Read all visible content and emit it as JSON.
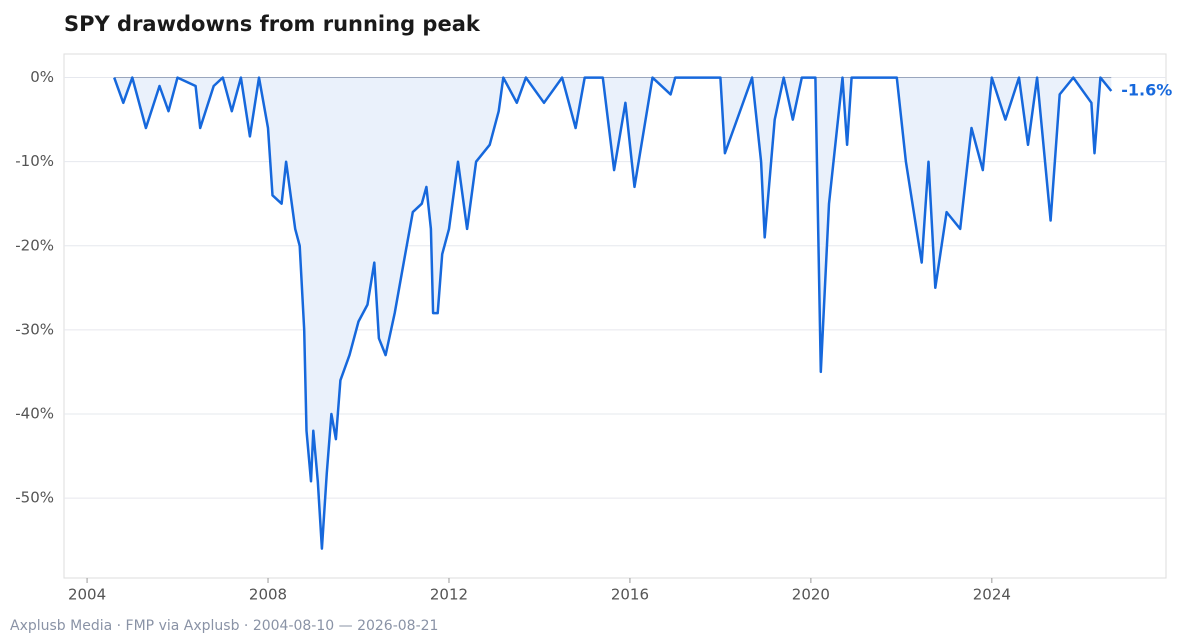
{
  "chart_data": {
    "type": "area-line",
    "title": "SPY drawdowns from running peak",
    "footer": "Axplusb Media · FMP via Axplusb · 2004-08-10 — 2026-08-21",
    "x": [
      2004.6,
      2004.8,
      2005.0,
      2005.3,
      2005.6,
      2005.8,
      2006.0,
      2006.4,
      2006.5,
      2006.8,
      2007.0,
      2007.2,
      2007.4,
      2007.6,
      2007.8,
      2008.0,
      2008.1,
      2008.3,
      2008.4,
      2008.6,
      2008.7,
      2008.8,
      2008.85,
      2008.95,
      2009.0,
      2009.1,
      2009.19,
      2009.3,
      2009.4,
      2009.5,
      2009.6,
      2009.8,
      2010.0,
      2010.2,
      2010.35,
      2010.45,
      2010.6,
      2010.8,
      2011.0,
      2011.2,
      2011.4,
      2011.5,
      2011.6,
      2011.65,
      2011.75,
      2011.85,
      2012.0,
      2012.2,
      2012.4,
      2012.6,
      2012.9,
      2013.1,
      2013.2,
      2013.5,
      2013.7,
      2014.1,
      2014.5,
      2014.8,
      2015.0,
      2015.4,
      2015.65,
      2015.9,
      2016.1,
      2016.5,
      2016.9,
      2017.0,
      2018.0,
      2018.1,
      2018.3,
      2018.7,
      2018.9,
      2018.98,
      2019.2,
      2019.4,
      2019.6,
      2019.8,
      2020.1,
      2020.22,
      2020.4,
      2020.6,
      2020.7,
      2020.8,
      2020.9,
      2021.9,
      2022.1,
      2022.45,
      2022.6,
      2022.75,
      2023.0,
      2023.3,
      2023.55,
      2023.8,
      2024.0,
      2024.3,
      2024.6,
      2024.8,
      2025.0,
      2025.3,
      2025.5,
      2025.8,
      2026.2,
      2026.27,
      2026.4,
      2026.64
    ],
    "series": [
      {
        "name": "SPY drawdown",
        "color": "#1668dc",
        "fill": "#eaf1fb",
        "values": [
          0,
          -3,
          0,
          -6,
          -1,
          -4,
          0,
          -1,
          -6,
          -1,
          0,
          -4,
          0,
          -7,
          0,
          -6,
          -14,
          -15,
          -10,
          -18,
          -20,
          -30,
          -42,
          -48,
          -42,
          -48,
          -56,
          -47,
          -40,
          -43,
          -36,
          -33,
          -29,
          -27,
          -22,
          -31,
          -33,
          -28,
          -22,
          -16,
          -15,
          -13,
          -18,
          -28,
          -28,
          -21,
          -18,
          -10,
          -18,
          -10,
          -8,
          -4,
          0,
          -3,
          0,
          -3,
          0,
          -6,
          0,
          0,
          -11,
          -3,
          -13,
          0,
          -2,
          0,
          0,
          -9,
          -6,
          0,
          -10,
          -19,
          -5,
          0,
          -5,
          0,
          0,
          -35,
          -15,
          -5,
          0,
          -8,
          0,
          0,
          -10,
          -22,
          -10,
          -25,
          -16,
          -18,
          -6,
          -11,
          0,
          -5,
          0,
          -8,
          0,
          -17,
          -2,
          0,
          -3,
          -9,
          0,
          -1.6
        ],
        "value_labels": [
          null,
          null,
          null,
          null,
          null,
          null,
          null,
          null,
          null,
          null,
          null,
          null,
          null,
          null,
          null,
          null,
          null,
          null,
          null,
          null,
          null,
          null,
          null,
          null,
          null,
          null,
          null,
          null,
          null,
          null,
          null,
          null,
          null,
          null,
          null,
          null,
          null,
          null,
          null,
          null,
          null,
          null,
          null,
          null,
          null,
          null,
          null,
          null,
          null,
          null,
          null,
          null,
          null,
          null,
          null,
          null,
          null,
          null,
          null,
          null,
          null,
          null,
          null,
          null,
          null,
          null,
          null,
          null,
          null,
          null,
          null,
          null,
          null,
          null,
          null,
          null,
          null,
          null,
          null,
          null,
          null,
          null,
          null,
          null,
          null,
          null,
          null,
          null,
          null,
          null,
          null,
          null,
          null,
          null,
          null,
          null,
          null,
          null,
          null,
          null,
          null,
          null,
          null,
          "-1.6%"
        ]
      }
    ],
    "xlim": [
      2003.49,
      2027.85
    ],
    "xticks": [
      2004,
      2008,
      2012,
      2016,
      2020,
      2024
    ],
    "ylim": [
      -59.5,
      2.8
    ],
    "yticks": [
      {
        "value": 0,
        "label": "0%"
      },
      {
        "value": -10,
        "label": "-10%"
      },
      {
        "value": -20,
        "label": "-20%"
      },
      {
        "value": -30,
        "label": "-30%"
      },
      {
        "value": -40,
        "label": "-40%"
      },
      {
        "value": -50,
        "label": "-50%"
      }
    ],
    "grid": true
  }
}
